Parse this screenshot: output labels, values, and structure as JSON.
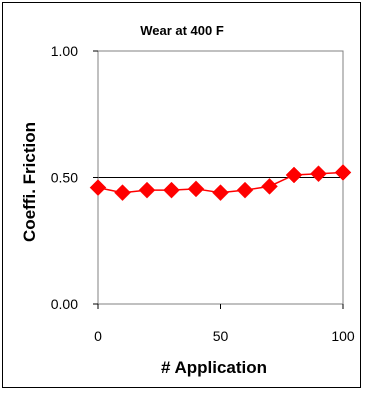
{
  "chart_data": {
    "type": "line",
    "title": "Wear at 400 F",
    "xlabel": "# Application",
    "ylabel": "Coeffi. Friction",
    "xlim": [
      0,
      100
    ],
    "ylim": [
      0,
      1
    ],
    "x_ticks": [
      0,
      50,
      100
    ],
    "x_tick_labels": [
      "0",
      "50",
      "100"
    ],
    "y_ticks": [
      0,
      0.5,
      1
    ],
    "y_tick_labels": [
      "0.00",
      "0.50",
      "1.00"
    ],
    "grid": "horizontal gridlines at 0.50 and 1.00",
    "legend": "none",
    "marker": "diamond",
    "color": "#FF0000",
    "series": [
      {
        "x": [
          0,
          10,
          20,
          30,
          40,
          50,
          60,
          70,
          80,
          90,
          100
        ],
        "y": [
          0.46,
          0.44,
          0.45,
          0.45,
          0.455,
          0.44,
          0.45,
          0.465,
          0.51,
          0.515,
          0.52
        ]
      }
    ]
  }
}
